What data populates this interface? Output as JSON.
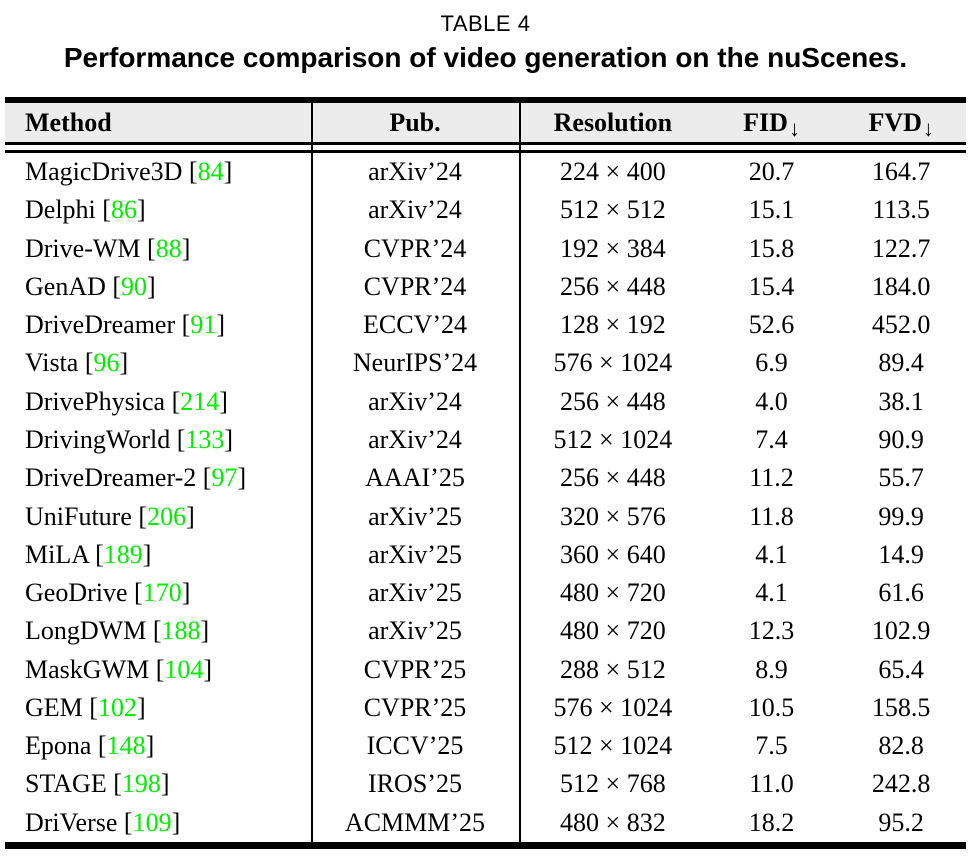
{
  "caption": {
    "label": "TABLE 4",
    "title": "Performance comparison of video generation on the nuScenes."
  },
  "colors": {
    "citation_green": "#00ee00",
    "header_background": "#ececec"
  },
  "table": {
    "bracket_open": "[",
    "bracket_close": "]",
    "header": {
      "method": "Method",
      "pub": "Pub.",
      "resolution": "Resolution",
      "fid": "FID",
      "fvd": "FVD",
      "down_arrow": "↓"
    },
    "rows": [
      {
        "method": "MagicDrive3D",
        "cite": "84",
        "pub": "arXiv’24",
        "resolution": "224 × 400",
        "fid": "20.7",
        "fvd": "164.7"
      },
      {
        "method": "Delphi",
        "cite": "86",
        "pub": "arXiv’24",
        "resolution": "512 × 512",
        "fid": "15.1",
        "fvd": "113.5"
      },
      {
        "method": "Drive-WM",
        "cite": "88",
        "pub": "CVPR’24",
        "resolution": "192 × 384",
        "fid": "15.8",
        "fvd": "122.7"
      },
      {
        "method": "GenAD",
        "cite": "90",
        "pub": "CVPR’24",
        "resolution": "256 × 448",
        "fid": "15.4",
        "fvd": "184.0"
      },
      {
        "method": "DriveDreamer",
        "cite": "91",
        "pub": "ECCV’24",
        "resolution": "128 × 192",
        "fid": "52.6",
        "fvd": "452.0"
      },
      {
        "method": "Vista",
        "cite": "96",
        "pub": "NeurIPS’24",
        "resolution": "576 × 1024",
        "fid": "6.9",
        "fvd": "89.4"
      },
      {
        "method": "DrivePhysica",
        "cite": "214",
        "pub": "arXiv’24",
        "resolution": "256 × 448",
        "fid": "4.0",
        "fvd": "38.1"
      },
      {
        "method": "DrivingWorld",
        "cite": "133",
        "pub": "arXiv’24",
        "resolution": "512 × 1024",
        "fid": "7.4",
        "fvd": "90.9"
      },
      {
        "method": "DriveDreamer-2",
        "cite": "97",
        "pub": "AAAI’25",
        "resolution": "256 × 448",
        "fid": "11.2",
        "fvd": "55.7"
      },
      {
        "method": "UniFuture",
        "cite": "206",
        "pub": "arXiv’25",
        "resolution": "320 × 576",
        "fid": "11.8",
        "fvd": "99.9"
      },
      {
        "method": "MiLA",
        "cite": "189",
        "pub": "arXiv’25",
        "resolution": "360 × 640",
        "fid": "4.1",
        "fvd": "14.9"
      },
      {
        "method": "GeoDrive",
        "cite": "170",
        "pub": "arXiv’25",
        "resolution": "480 × 720",
        "fid": "4.1",
        "fvd": "61.6"
      },
      {
        "method": "LongDWM",
        "cite": "188",
        "pub": "arXiv’25",
        "resolution": "480 × 720",
        "fid": "12.3",
        "fvd": "102.9"
      },
      {
        "method": "MaskGWM",
        "cite": "104",
        "pub": "CVPR’25",
        "resolution": "288 × 512",
        "fid": "8.9",
        "fvd": "65.4"
      },
      {
        "method": "GEM",
        "cite": "102",
        "pub": "CVPR’25",
        "resolution": "576 × 1024",
        "fid": "10.5",
        "fvd": "158.5"
      },
      {
        "method": "Epona",
        "cite": "148",
        "pub": "ICCV’25",
        "resolution": "512 × 1024",
        "fid": "7.5",
        "fvd": "82.8"
      },
      {
        "method": "STAGE",
        "cite": "198",
        "pub": "IROS’25",
        "resolution": "512 × 768",
        "fid": "11.0",
        "fvd": "242.8"
      },
      {
        "method": "DriVerse",
        "cite": "109",
        "pub": "ACMMM’25",
        "resolution": "480 × 832",
        "fid": "18.2",
        "fvd": "95.2"
      }
    ]
  }
}
